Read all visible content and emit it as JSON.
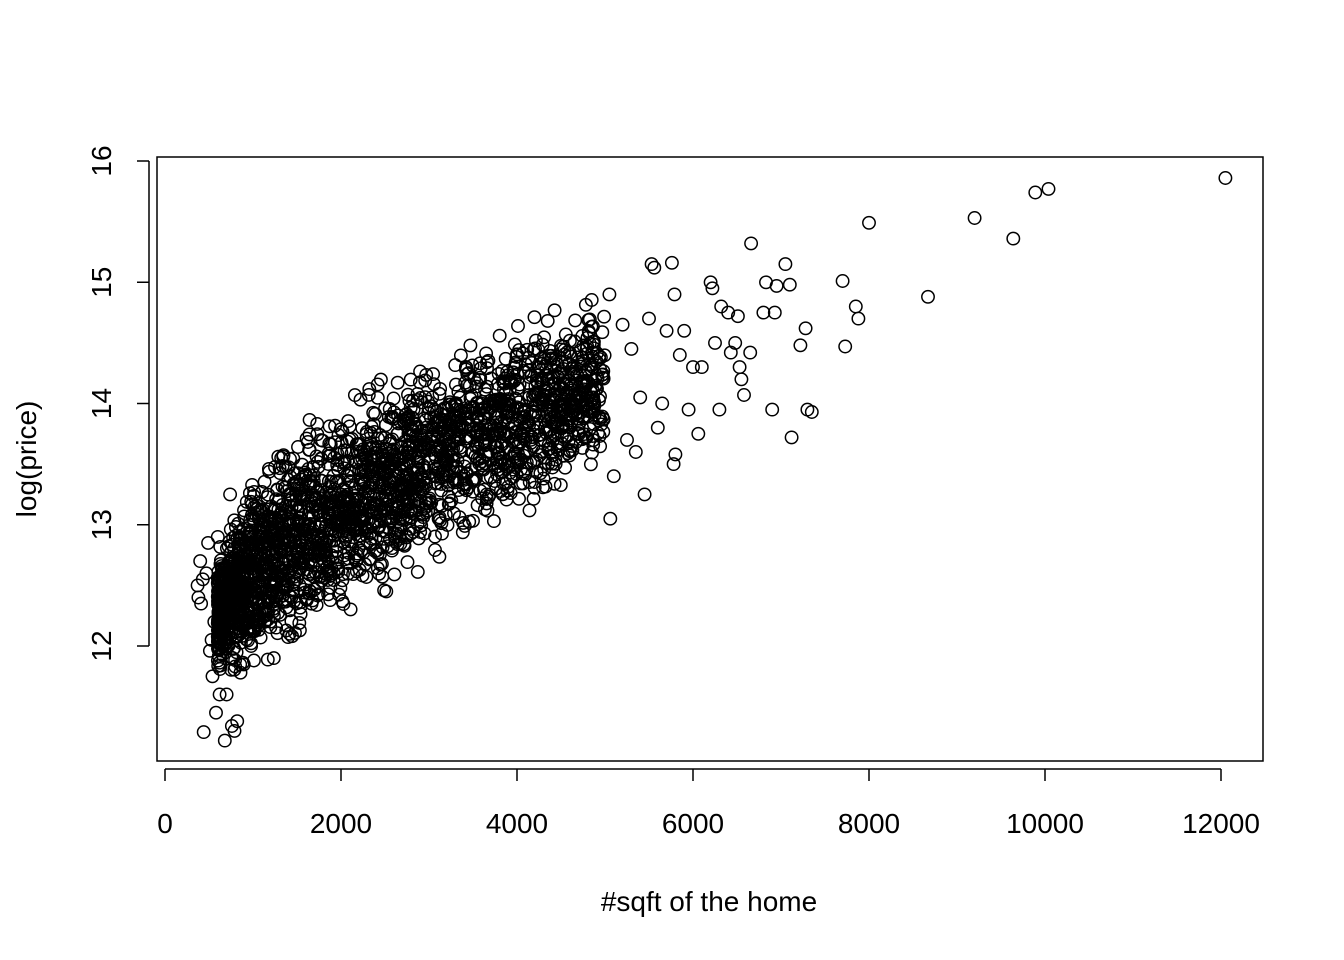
{
  "chart_data": {
    "type": "scatter",
    "title": "",
    "xlabel": "#sqft of the home",
    "ylabel": "log(price)",
    "xlim": [
      290,
      12050
    ],
    "ylim": [
      11.22,
      15.86
    ],
    "x_ticks": [
      0,
      2000,
      4000,
      6000,
      8000,
      10000,
      12000
    ],
    "x_tick_labels": [
      "0",
      "2000",
      "4000",
      "6000",
      "8000",
      "10000",
      "12000"
    ],
    "y_ticks": [
      12,
      13,
      14,
      15,
      16
    ],
    "y_tick_labels": [
      "12",
      "13",
      "14",
      "15",
      "16"
    ],
    "grid": false,
    "legend": "none",
    "marker": "open-circle",
    "color": "#000000",
    "series": [
      {
        "values_described_as": "dense cloud of ~21000 houses; log(price) rises with sqft",
        "points": [
          [
            370,
            12.5
          ],
          [
            380,
            12.4
          ],
          [
            400,
            12.7
          ],
          [
            410,
            12.35
          ],
          [
            430,
            12.55
          ],
          [
            440,
            11.29
          ],
          [
            470,
            12.6
          ],
          [
            490,
            12.85
          ],
          [
            510,
            11.96
          ],
          [
            530,
            12.05
          ],
          [
            540,
            11.75
          ],
          [
            560,
            12.2
          ],
          [
            580,
            11.45
          ],
          [
            600,
            12.9
          ],
          [
            620,
            11.6
          ],
          [
            650,
            12.0
          ],
          [
            680,
            11.22
          ],
          [
            700,
            11.6
          ],
          [
            720,
            12.3
          ],
          [
            740,
            13.25
          ],
          [
            760,
            11.34
          ],
          [
            790,
            11.3
          ],
          [
            820,
            11.38
          ],
          [
            5050,
            14.9
          ],
          [
            5060,
            13.05
          ],
          [
            5100,
            13.4
          ],
          [
            5200,
            14.65
          ],
          [
            5250,
            13.7
          ],
          [
            5300,
            14.45
          ],
          [
            5350,
            13.6
          ],
          [
            5400,
            14.05
          ],
          [
            5450,
            13.25
          ],
          [
            5500,
            14.7
          ],
          [
            5530,
            15.15
          ],
          [
            5560,
            15.12
          ],
          [
            5600,
            13.8
          ],
          [
            5650,
            14.0
          ],
          [
            5700,
            14.6
          ],
          [
            5760,
            15.16
          ],
          [
            5780,
            13.5
          ],
          [
            5790,
            14.9
          ],
          [
            5800,
            13.58
          ],
          [
            5850,
            14.4
          ],
          [
            5900,
            14.6
          ],
          [
            5950,
            13.95
          ],
          [
            6000,
            14.3
          ],
          [
            6060,
            13.75
          ],
          [
            6100,
            14.3
          ],
          [
            6200,
            15.0
          ],
          [
            6220,
            14.95
          ],
          [
            6250,
            14.5
          ],
          [
            6300,
            13.95
          ],
          [
            6320,
            14.8
          ],
          [
            6400,
            14.75
          ],
          [
            6430,
            14.42
          ],
          [
            6480,
            14.5
          ],
          [
            6510,
            14.72
          ],
          [
            6530,
            14.3
          ],
          [
            6550,
            14.2
          ],
          [
            6580,
            14.07
          ],
          [
            6650,
            14.42
          ],
          [
            6660,
            15.32
          ],
          [
            6800,
            14.75
          ],
          [
            6830,
            15.0
          ],
          [
            6900,
            13.95
          ],
          [
            6930,
            14.75
          ],
          [
            6950,
            14.97
          ],
          [
            7050,
            15.15
          ],
          [
            7100,
            14.98
          ],
          [
            7120,
            13.72
          ],
          [
            7220,
            14.48
          ],
          [
            7280,
            14.62
          ],
          [
            7300,
            13.95
          ],
          [
            7350,
            13.93
          ],
          [
            7700,
            15.01
          ],
          [
            7730,
            14.47
          ],
          [
            7850,
            14.8
          ],
          [
            7880,
            14.7
          ],
          [
            8000,
            15.49
          ],
          [
            8670,
            14.88
          ],
          [
            9200,
            15.53
          ],
          [
            9640,
            15.36
          ],
          [
            9890,
            15.74
          ],
          [
            10040,
            15.77
          ],
          [
            12050,
            15.86
          ]
        ],
        "bulk_trend": [
          {
            "x": 600,
            "low": 11.6,
            "high": 12.9
          },
          {
            "x": 1000,
            "low": 11.6,
            "high": 13.6
          },
          {
            "x": 1500,
            "low": 11.8,
            "high": 13.95
          },
          {
            "x": 2000,
            "low": 12.05,
            "high": 14.15
          },
          {
            "x": 2500,
            "low": 12.3,
            "high": 14.35
          },
          {
            "x": 3000,
            "low": 12.55,
            "high": 14.5
          },
          {
            "x": 3500,
            "low": 12.75,
            "high": 14.7
          },
          {
            "x": 4000,
            "low": 12.95,
            "high": 14.85
          },
          {
            "x": 4500,
            "low": 13.1,
            "high": 14.95
          },
          {
            "x": 5000,
            "low": 13.3,
            "high": 15.05
          }
        ]
      }
    ]
  }
}
